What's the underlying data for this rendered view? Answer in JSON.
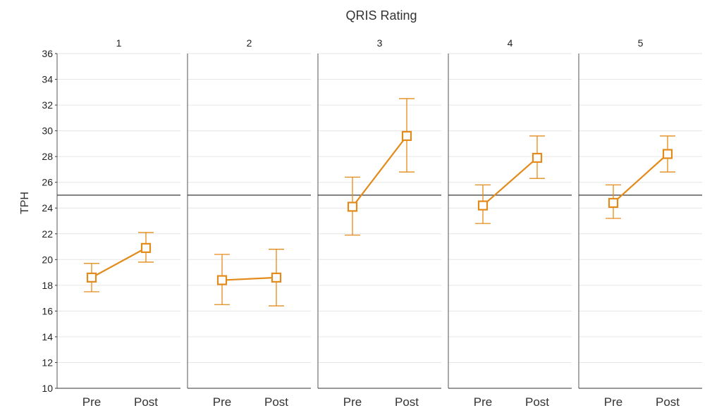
{
  "chart_data": {
    "type": "line",
    "title": "QRIS Rating",
    "ylabel": "TPH",
    "ylim": [
      10,
      36
    ],
    "yticks": [
      10,
      12,
      14,
      16,
      18,
      20,
      22,
      24,
      26,
      28,
      30,
      32,
      34,
      36
    ],
    "categories": [
      "Pre",
      "Post"
    ],
    "reference_line": 25,
    "grid": true,
    "color": "#e38b1a",
    "facets": [
      {
        "label": "1",
        "values": [
          18.6,
          20.9
        ],
        "error_low": [
          17.5,
          19.8
        ],
        "error_high": [
          19.7,
          22.1
        ]
      },
      {
        "label": "2",
        "values": [
          18.4,
          18.6
        ],
        "error_low": [
          16.5,
          16.4
        ],
        "error_high": [
          20.4,
          20.8
        ]
      },
      {
        "label": "3",
        "values": [
          24.1,
          29.6
        ],
        "error_low": [
          21.9,
          26.8
        ],
        "error_high": [
          26.4,
          32.5
        ]
      },
      {
        "label": "4",
        "values": [
          24.2,
          27.9
        ],
        "error_low": [
          22.8,
          26.3
        ],
        "error_high": [
          25.8,
          29.6
        ]
      },
      {
        "label": "5",
        "values": [
          24.4,
          28.2
        ],
        "error_low": [
          23.2,
          26.8
        ],
        "error_high": [
          25.8,
          29.6
        ]
      }
    ]
  }
}
